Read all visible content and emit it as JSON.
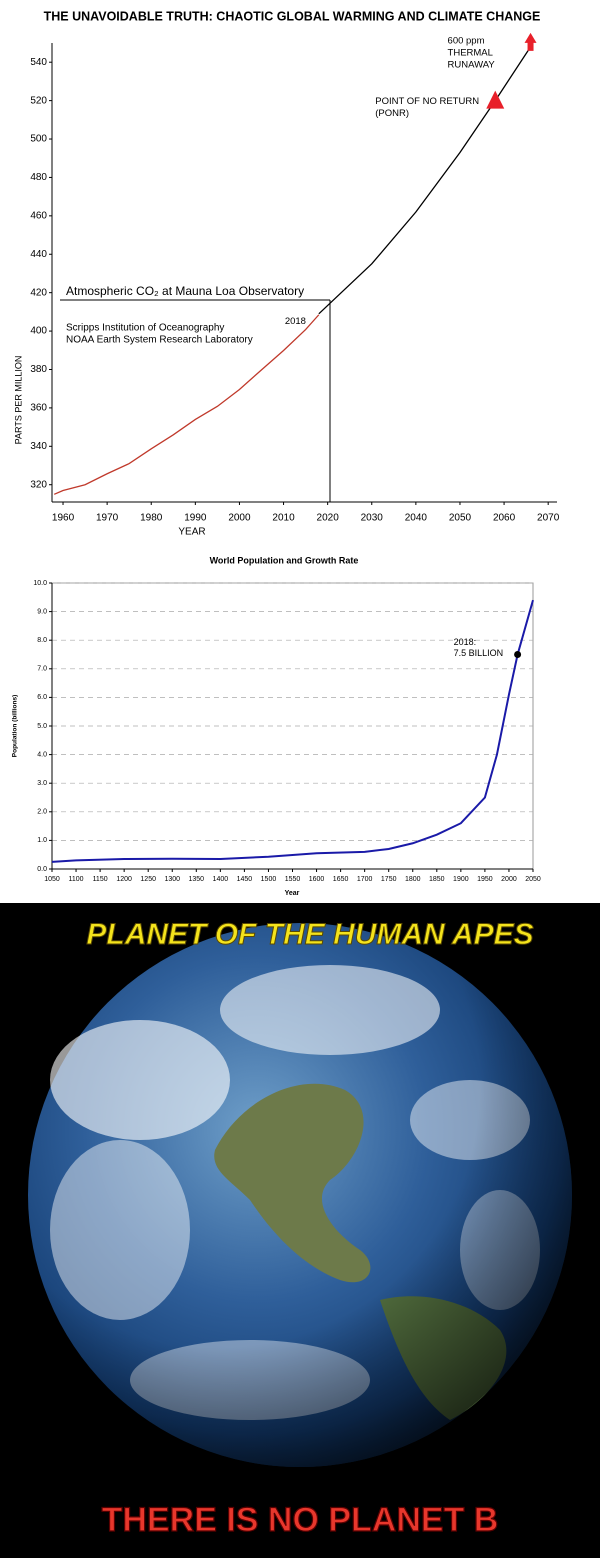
{
  "chart_data": [
    {
      "type": "line",
      "title": "THE UNAVOIDABLE TRUTH: CHAOTIC GLOBAL WARMING AND CLIMATE CHANGE",
      "xlabel": "YEAR",
      "ylabel": "PARTS PER MILLION",
      "xlim": [
        1957.5,
        2072
      ],
      "ylim": [
        311,
        550
      ],
      "xticks": [
        1960,
        1970,
        1980,
        1990,
        2000,
        2010,
        2020,
        2030,
        2040,
        2050,
        2060,
        2070
      ],
      "yticks": [
        320,
        340,
        360,
        380,
        400,
        420,
        440,
        460,
        480,
        500,
        520,
        540
      ],
      "grid": false,
      "inset_title": "Atmospheric CO₂ at Mauna Loa Observatory",
      "inset_notes": [
        "Scripps Institution of Oceanography",
        "NOAA Earth System Research Laboratory"
      ],
      "series": [
        {
          "color": "#c0392b",
          "x": [
            1958,
            1960,
            1965,
            1970,
            1975,
            1980,
            1985,
            1990,
            1995,
            2000,
            2005,
            2010,
            2015,
            2018
          ],
          "values": [
            315,
            317,
            320,
            325.7,
            331,
            338.7,
            346,
            354,
            360.8,
            369.6,
            379.8,
            389.9,
            400.8,
            408.5
          ]
        },
        {
          "color": "#000000",
          "x": [
            2018,
            2030,
            2040,
            2050,
            2058,
            2066
          ],
          "values": [
            409,
            435,
            462,
            493,
            520,
            548
          ]
        }
      ],
      "annotations": [
        {
          "x": 2018,
          "y": 408,
          "lines": [
            "2018"
          ]
        },
        {
          "x": 2058,
          "y": 520,
          "lines": [
            "POINT OF NO RETURN",
            "(PONR)"
          ],
          "marker": "triangle",
          "color": "#e8202a"
        },
        {
          "x": 2066,
          "y": 548,
          "lines": [
            "600 ppm",
            "THERMAL",
            "RUNAWAY"
          ],
          "marker": "arrow",
          "color": "#e8202a"
        }
      ]
    },
    {
      "type": "line",
      "title": "World Population and Growth Rate",
      "xlabel": "Year",
      "ylabel": "Population (billions)",
      "xlim": [
        1050,
        2050
      ],
      "ylim": [
        0,
        10
      ],
      "xticks": [
        1050,
        1100,
        1150,
        1200,
        1250,
        1300,
        1350,
        1400,
        1450,
        1500,
        1550,
        1600,
        1650,
        1700,
        1750,
        1800,
        1850,
        1900,
        1950,
        2000,
        2050
      ],
      "yticks": [
        {
          "value": 0,
          "label": "0.0"
        },
        {
          "value": 1,
          "label": "1.0"
        },
        {
          "value": 2,
          "label": "2.0"
        },
        {
          "value": 3,
          "label": "3.0"
        },
        {
          "value": 4,
          "label": "4.0"
        },
        {
          "value": 5,
          "label": "5.0"
        },
        {
          "value": 6,
          "label": "6.0"
        },
        {
          "value": 7,
          "label": "7.0"
        },
        {
          "value": 8,
          "label": "8.0"
        },
        {
          "value": 9,
          "label": "9.0"
        },
        {
          "value": 10,
          "label": "10.0"
        }
      ],
      "grid": true,
      "series": [
        {
          "color": "#1a1aa8",
          "x": [
            1050,
            1100,
            1200,
            1300,
            1400,
            1500,
            1600,
            1700,
            1750,
            1800,
            1850,
            1900,
            1950,
            1975,
            2000,
            2018,
            2050
          ],
          "values": [
            0.25,
            0.3,
            0.35,
            0.36,
            0.35,
            0.43,
            0.55,
            0.6,
            0.7,
            0.9,
            1.2,
            1.6,
            2.5,
            4.0,
            6.1,
            7.5,
            9.4
          ]
        }
      ],
      "annotations": [
        {
          "x": 2018,
          "y": 7.5,
          "lines": [
            "2018:",
            "7.5 BILLION"
          ],
          "marker": "dot",
          "color": "#000000"
        }
      ]
    }
  ],
  "poster": {
    "title": "PLANET OF THE HUMAN APES",
    "caption": "THERE IS NO PLANET B"
  }
}
